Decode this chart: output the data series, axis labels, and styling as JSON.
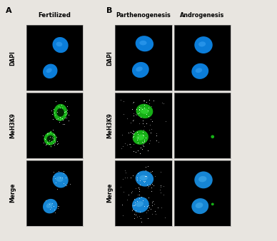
{
  "figure_width": 3.88,
  "figure_height": 3.38,
  "dpi": 100,
  "background_color": "#e8e5e0",
  "panel_bg": "#000000",
  "label_A": "A",
  "label_B": "B",
  "col_labels_A": [
    "Fertilized"
  ],
  "col_labels_B": [
    "Parthenogenesis",
    "Androgenesis"
  ],
  "row_labels": [
    "DAPI",
    "MeH3K9",
    "Merge"
  ],
  "label_fontsize": 8,
  "col_label_fontsize": 6.2,
  "row_label_fontsize": 5.5
}
